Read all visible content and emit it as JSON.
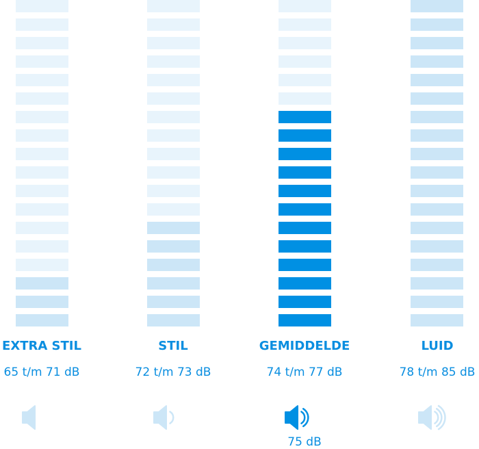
{
  "colors": {
    "inactive": "#e8f4fc",
    "lit": "#cce6f7",
    "active": "#0090e3",
    "text": "#0a8ee0"
  },
  "total_segments": 18,
  "levels": [
    {
      "label": "EXTRA STIL",
      "range": "65 t/m 71 dB",
      "lit_segments": 3,
      "icon": "speaker-0-waves-icon",
      "waves": 0,
      "active": false
    },
    {
      "label": "STIL",
      "range": "72 t/m 73 dB",
      "lit_segments": 6,
      "icon": "speaker-1-wave-icon",
      "waves": 1,
      "active": false
    },
    {
      "label": "GEMIDDELDE",
      "range": "74 t/m 77 dB",
      "lit_segments": 12,
      "icon": "speaker-2-waves-icon",
      "waves": 2,
      "active": true,
      "current": "75 dB"
    },
    {
      "label": "LUID",
      "range": "78 t/m 85 dB",
      "lit_segments": 18,
      "icon": "speaker-3-waves-icon",
      "waves": 3,
      "active": false
    }
  ]
}
